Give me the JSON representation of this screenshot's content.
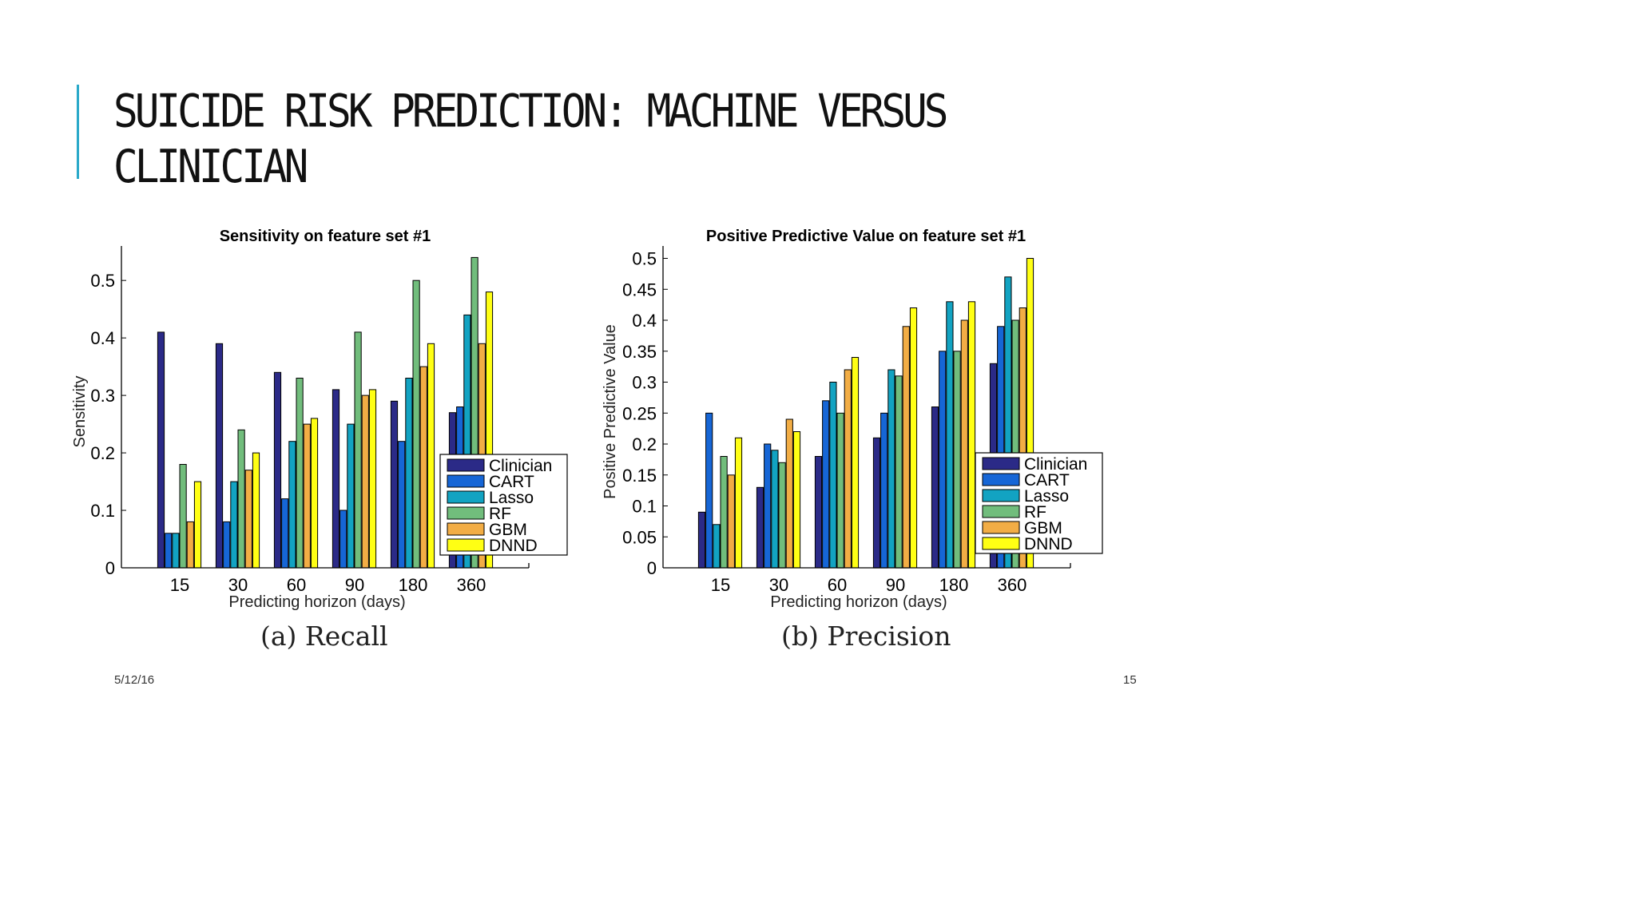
{
  "slide": {
    "title": "SUICIDE RISK PREDICTION: MACHINE VERSUS CLINICIAN",
    "date": "5/12/16",
    "page_number": "15",
    "accent_color": "#29a9c9"
  },
  "series_colors": [
    "#2b2a87",
    "#1666d6",
    "#12a3c2",
    "#71bd7c",
    "#f2ad45",
    "#ffff14"
  ],
  "captions": [
    "(a) Recall",
    "(b) Precision"
  ],
  "chart_data": [
    {
      "type": "bar",
      "title": "Sensitivity on feature set #1",
      "xlabel": "Predicting horizon (days)",
      "ylabel": "Sensitivity",
      "categories": [
        "15",
        "30",
        "60",
        "90",
        "180",
        "360"
      ],
      "ylim": [
        0,
        0.56
      ],
      "yticks": [
        0,
        0.1,
        0.2,
        0.3,
        0.4,
        0.5
      ],
      "ytick_labels": [
        "0",
        "0.1",
        "0.2",
        "0.3",
        "0.4",
        "0.5"
      ],
      "legend_position": "right",
      "grid": false,
      "series": [
        {
          "name": "Clinician",
          "values": [
            0.41,
            0.39,
            0.34,
            0.31,
            0.29,
            0.27
          ]
        },
        {
          "name": "CART",
          "values": [
            0.06,
            0.08,
            0.12,
            0.1,
            0.22,
            0.28
          ]
        },
        {
          "name": "Lasso",
          "values": [
            0.06,
            0.15,
            0.22,
            0.25,
            0.33,
            0.44
          ]
        },
        {
          "name": "RF",
          "values": [
            0.18,
            0.24,
            0.33,
            0.41,
            0.5,
            0.54
          ]
        },
        {
          "name": "GBM",
          "values": [
            0.08,
            0.17,
            0.25,
            0.3,
            0.35,
            0.39
          ]
        },
        {
          "name": "DNND",
          "values": [
            0.15,
            0.2,
            0.26,
            0.31,
            0.39,
            0.48
          ]
        }
      ]
    },
    {
      "type": "bar",
      "title": "Positive Predictive Value on feature set #1",
      "xlabel": "Predicting horizon (days)",
      "ylabel": "Positive Predictive Value",
      "categories": [
        "15",
        "30",
        "60",
        "90",
        "180",
        "360"
      ],
      "ylim": [
        0,
        0.52
      ],
      "yticks": [
        0,
        0.05,
        0.1,
        0.15,
        0.2,
        0.25,
        0.3,
        0.35,
        0.4,
        0.45,
        0.5
      ],
      "ytick_labels": [
        "0",
        "0.05",
        "0.1",
        "0.15",
        "0.2",
        "0.25",
        "0.3",
        "0.35",
        "0.4",
        "0.45",
        "0.5"
      ],
      "legend_position": "right",
      "grid": false,
      "series": [
        {
          "name": "Clinician",
          "values": [
            0.09,
            0.13,
            0.18,
            0.21,
            0.26,
            0.33
          ]
        },
        {
          "name": "CART",
          "values": [
            0.25,
            0.2,
            0.27,
            0.25,
            0.35,
            0.39
          ]
        },
        {
          "name": "Lasso",
          "values": [
            0.07,
            0.19,
            0.3,
            0.32,
            0.43,
            0.47
          ]
        },
        {
          "name": "RF",
          "values": [
            0.18,
            0.17,
            0.25,
            0.31,
            0.35,
            0.4
          ]
        },
        {
          "name": "GBM",
          "values": [
            0.15,
            0.24,
            0.32,
            0.39,
            0.4,
            0.42
          ]
        },
        {
          "name": "DNND",
          "values": [
            0.21,
            0.22,
            0.34,
            0.42,
            0.43,
            0.5
          ]
        }
      ]
    }
  ]
}
